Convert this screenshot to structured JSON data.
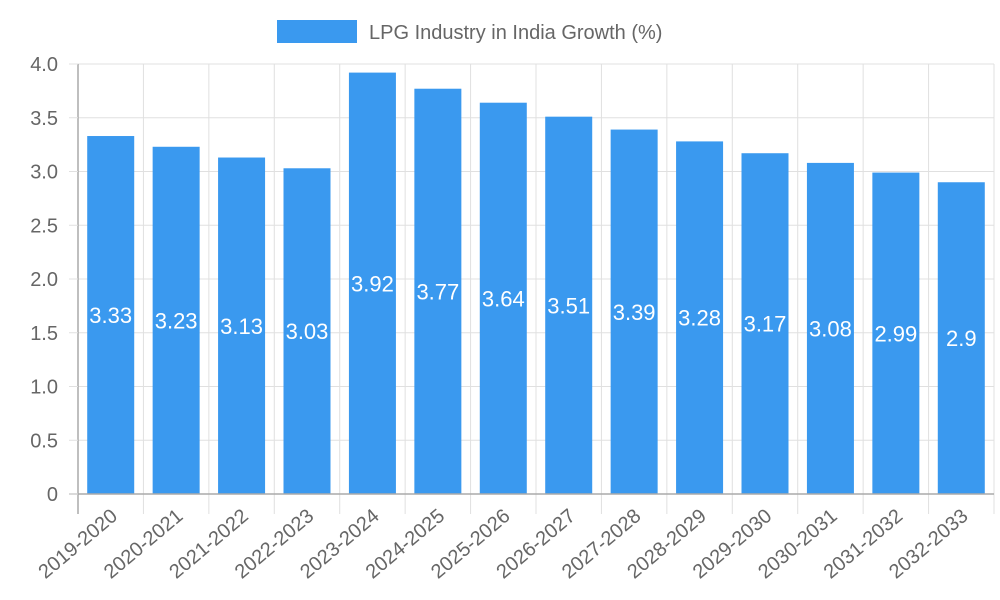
{
  "chart_data": {
    "type": "bar",
    "title": "",
    "xlabel": "",
    "ylabel": "",
    "categories": [
      "2019-2020",
      "2020-2021",
      "2021-2022",
      "2022-2023",
      "2023-2024",
      "2024-2025",
      "2025-2026",
      "2026-2027",
      "2027-2028",
      "2028-2029",
      "2029-2030",
      "2030-2031",
      "2031-2032",
      "2032-2033"
    ],
    "series": [
      {
        "name": "LPG Industry in India Growth (%)",
        "color": "#3a99ef",
        "values": [
          3.33,
          3.23,
          3.13,
          3.03,
          3.92,
          3.77,
          3.64,
          3.51,
          3.39,
          3.28,
          3.17,
          3.08,
          2.99,
          2.9
        ],
        "data_labels": [
          "3.33",
          "3.23",
          "3.13",
          "3.03",
          "3.92",
          "3.77",
          "3.64",
          "3.51",
          "3.39",
          "3.28",
          "3.17",
          "3.08",
          "2.99",
          "2.9"
        ]
      }
    ],
    "ylim": [
      0,
      4.0
    ],
    "yticks": [
      "0",
      "0.5",
      "1.0",
      "1.5",
      "2.0",
      "2.5",
      "3.0",
      "3.5",
      "4.0"
    ],
    "ytick_values": [
      0,
      0.5,
      1.0,
      1.5,
      2.0,
      2.5,
      3.0,
      3.5,
      4.0
    ],
    "grid": true,
    "legend_position": "top-center",
    "grid_color": "#e0e0e0",
    "axis_color": "#aaaaaa"
  }
}
